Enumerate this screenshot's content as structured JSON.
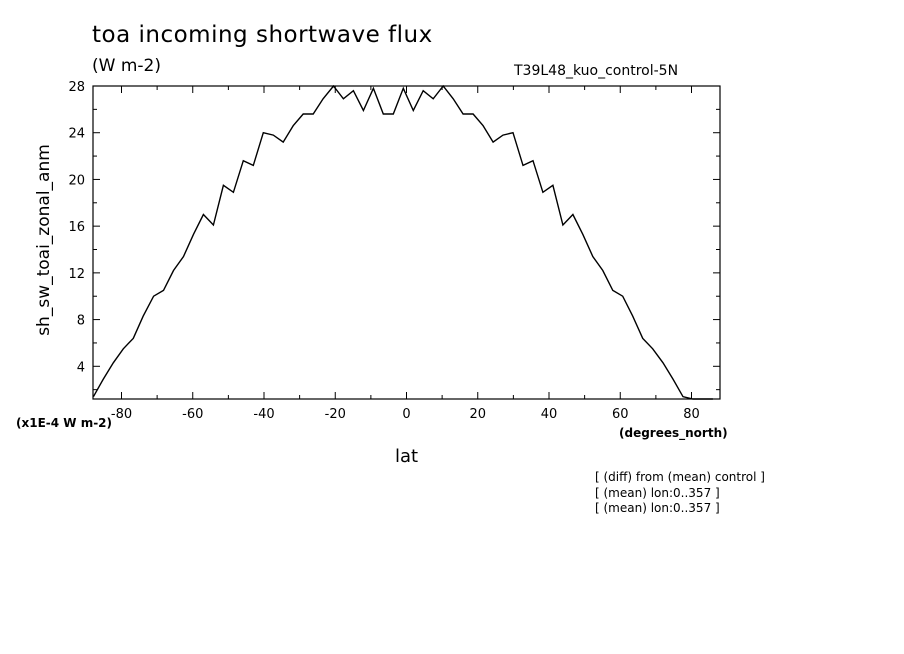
{
  "title": "toa incoming shortwave flux",
  "units": "(W m-2)",
  "run_label": "T39L48_kuo_control-5N",
  "scale_label": "(x1E-4 W m-2)",
  "x_units_label": "(degrees_north)",
  "notes": [
    "[ (diff) from (mean) control ]",
    "[ (mean) lon:0..357 ]",
    "[ (mean) lon:0..357 ]"
  ],
  "chart_data": {
    "type": "line",
    "title": "toa incoming shortwave flux",
    "xlabel": "lat",
    "ylabel": "sh_sw_toai_zonal_anm",
    "xlim": [
      -88,
      88
    ],
    "ylim": [
      1.2,
      28
    ],
    "x_ticks": [
      -80,
      -60,
      -40,
      -20,
      0,
      20,
      40,
      60,
      80
    ],
    "y_ticks": [
      4,
      8,
      12,
      16,
      20,
      24,
      28
    ],
    "grid": false,
    "series": [
      {
        "color": "#000000",
        "x": [
          -87.9,
          -85.1,
          -82.3,
          -79.5,
          -76.7,
          -73.9,
          -71.0,
          -68.2,
          -65.4,
          -62.6,
          -59.8,
          -57.0,
          -54.2,
          -51.4,
          -48.6,
          -45.8,
          -43.0,
          -40.2,
          -37.4,
          -34.6,
          -31.8,
          -29.0,
          -26.2,
          -23.4,
          -20.5,
          -17.7,
          -14.9,
          -12.1,
          -9.3,
          -6.5,
          -3.7,
          -0.9,
          1.9,
          4.7,
          7.5,
          10.3,
          13.1,
          15.9,
          18.7,
          21.5,
          24.3,
          27.1,
          29.9,
          32.7,
          35.5,
          38.3,
          41.1,
          43.9,
          46.7,
          49.5,
          52.3,
          55.1,
          57.9,
          60.7,
          63.5,
          66.3,
          69.1,
          72.0,
          74.8,
          77.6,
          80.4,
          83.2,
          86.0
        ],
        "y": [
          1.4,
          2.9,
          4.3,
          5.5,
          6.4,
          8.3,
          10.0,
          10.5,
          12.2,
          13.4,
          15.3,
          17.0,
          16.1,
          19.5,
          18.9,
          21.6,
          21.2,
          24.0,
          23.8,
          23.2,
          24.6,
          25.6,
          25.6,
          26.9,
          28.0,
          26.9,
          27.6,
          25.9,
          27.8,
          25.6,
          25.6,
          27.8,
          25.9,
          27.6,
          26.9,
          28.0,
          26.9,
          25.6,
          25.6,
          24.6,
          23.2,
          23.8,
          24.0,
          21.2,
          21.6,
          18.9,
          19.5,
          16.1,
          17.0,
          15.3,
          13.4,
          12.2,
          10.5,
          10.0,
          8.3,
          6.4,
          5.5,
          4.3,
          2.9,
          1.4,
          1.2,
          1.2,
          1.2
        ]
      }
    ]
  }
}
